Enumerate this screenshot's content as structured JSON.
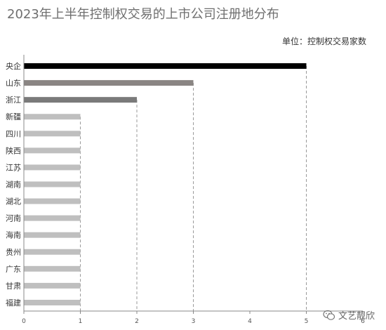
{
  "header": {
    "title": "2023年上半年控制权交易的上市公司注册地分布",
    "unit": "单位：控制权交易家数"
  },
  "watermark": {
    "text": "文艺靓欣",
    "icon": "wechat-icon"
  },
  "colors": {
    "top": "#000000",
    "second": "#8a8583",
    "third": "#7a7a7a",
    "rest": "#bfbfbf",
    "axis": "#888888",
    "grid": "#999999"
  },
  "chart_data": {
    "type": "bar",
    "orientation": "horizontal",
    "categories": [
      "央企",
      "山东",
      "浙江",
      "新疆",
      "四川",
      "陕西",
      "江苏",
      "湖南",
      "湖北",
      "河南",
      "海南",
      "贵州",
      "广东",
      "甘肃",
      "福建"
    ],
    "values": [
      5,
      3,
      2,
      1,
      1,
      1,
      1,
      1,
      1,
      1,
      1,
      1,
      1,
      1,
      1
    ],
    "xlim": [
      0,
      6
    ],
    "xticks": [
      0,
      1,
      2,
      3,
      4,
      5,
      6
    ],
    "title": "2023年上半年控制权交易的上市公司注册地分布",
    "unit": "单位：控制权交易家数",
    "grid": "dashed vertical lines at bar ends"
  }
}
